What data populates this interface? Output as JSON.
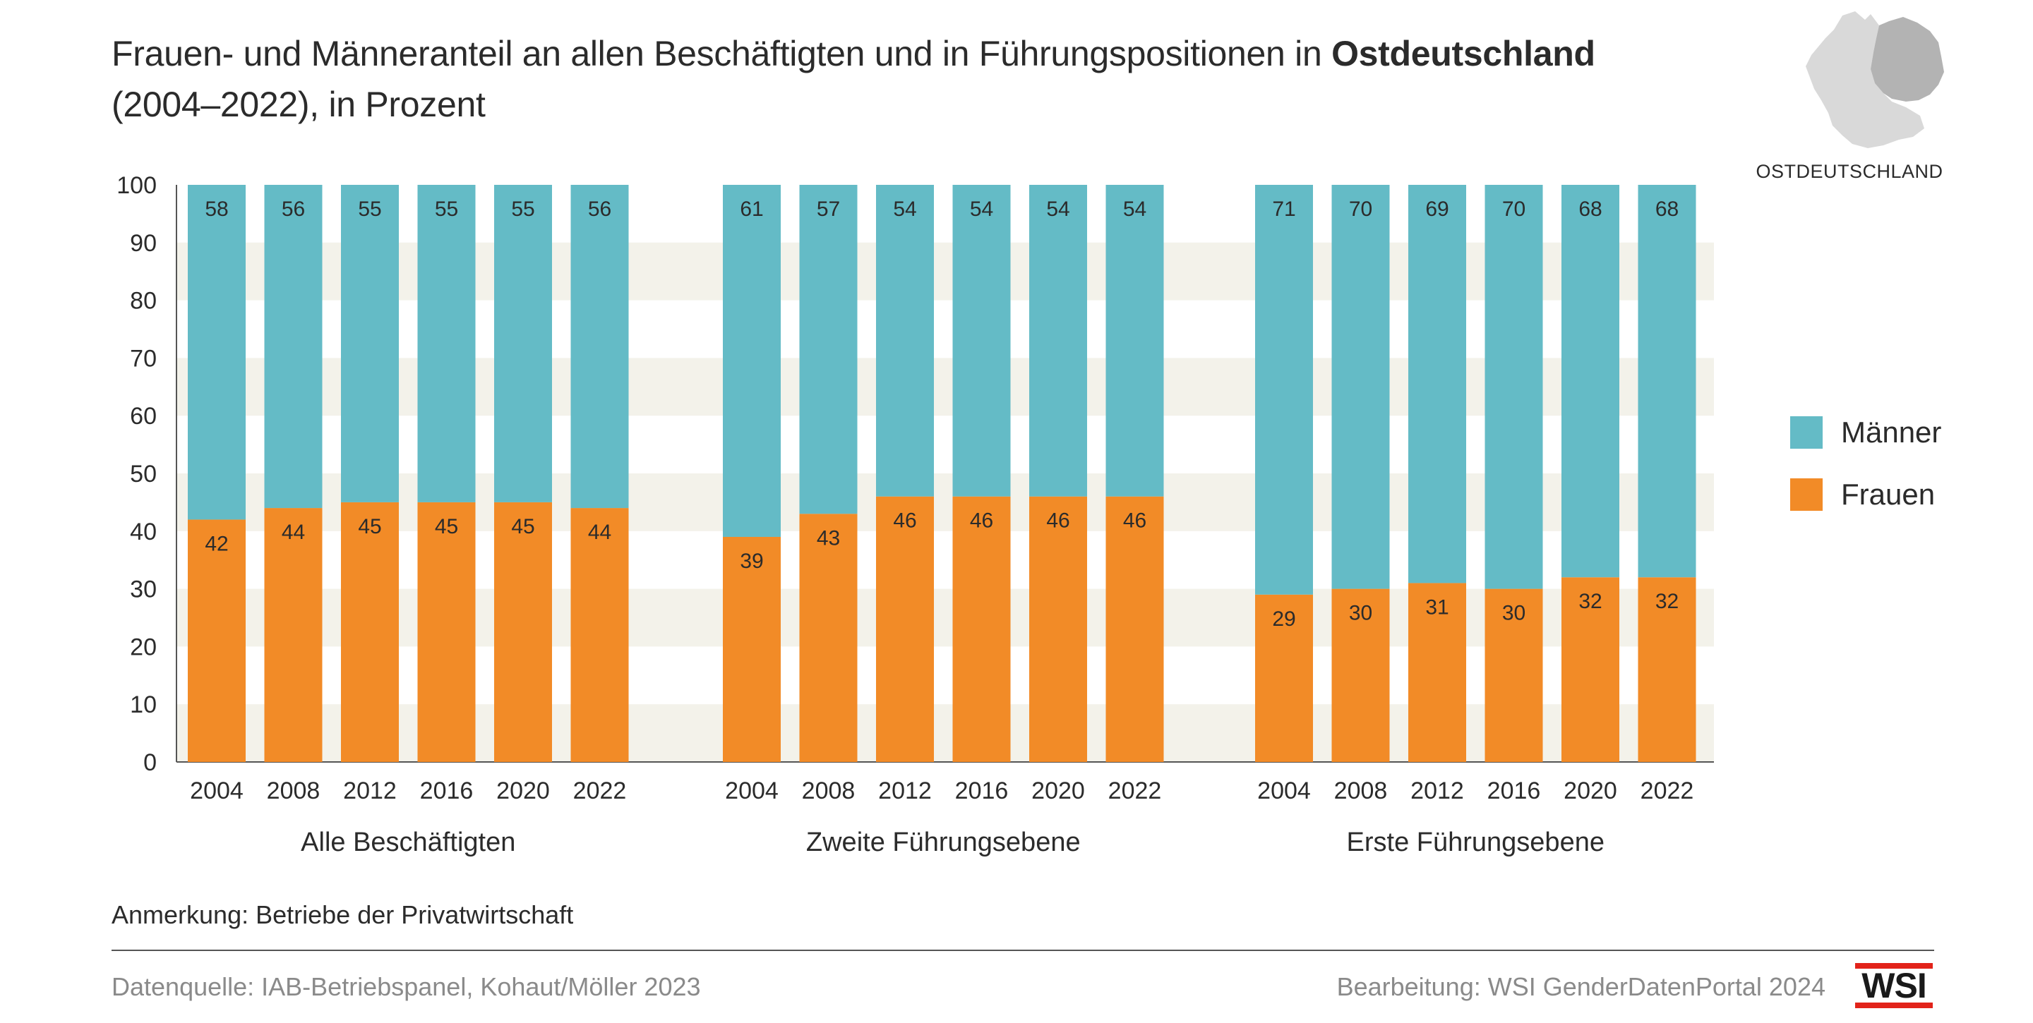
{
  "title": {
    "part1": "Frauen- und Männeranteil an allen Beschäftigten und in Führungspositionen in ",
    "bold": "Ostdeutschland",
    "part2": "(2004–2022), in Prozent"
  },
  "map_label": "OSTDEUTSCHLAND",
  "note": "Anmerkung: Betriebe der Privatwirtschaft",
  "source": "Datenquelle:  IAB-Betriebspanel, Kohaut/Möller 2023",
  "credit": "Bearbeitung: WSI GenderDatenPortal 2024",
  "logo_text": "WSI",
  "colors": {
    "maenner": "#64bbc6",
    "frauen": "#f28b27",
    "stripe": "#f3f2ea",
    "map_fill": "#d9d9d9",
    "map_highlight": "#b3b3b3"
  },
  "chart_data": {
    "type": "bar",
    "stacked": true,
    "ylim": [
      0,
      100
    ],
    "yticks": [
      0,
      10,
      20,
      30,
      40,
      50,
      60,
      70,
      80,
      90,
      100
    ],
    "categories": [
      "2004",
      "2008",
      "2012",
      "2016",
      "2020",
      "2022"
    ],
    "groups": [
      {
        "name": "Alle Beschäftigten",
        "frauen": [
          42,
          44,
          45,
          45,
          45,
          44
        ],
        "maenner": [
          58,
          56,
          55,
          55,
          55,
          56
        ]
      },
      {
        "name": "Zweite Führungsebene",
        "frauen": [
          39,
          43,
          46,
          46,
          46,
          46
        ],
        "maenner": [
          61,
          57,
          54,
          54,
          54,
          54
        ]
      },
      {
        "name": "Erste Führungsebene",
        "frauen": [
          29,
          30,
          31,
          30,
          32,
          32
        ],
        "maenner": [
          71,
          70,
          69,
          70,
          68,
          68
        ]
      }
    ],
    "legend": [
      {
        "name": "Männer",
        "color": "#64bbc6"
      },
      {
        "name": "Frauen",
        "color": "#f28b27"
      }
    ],
    "legend_position": "right",
    "grid": "horizontal-stripes"
  }
}
